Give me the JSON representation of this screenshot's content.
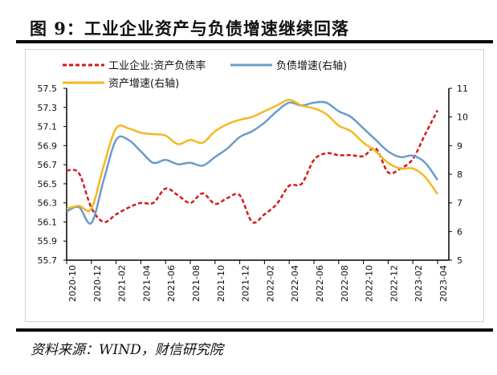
{
  "title": "图 9：工业企业资产与负债增速继续回落",
  "source": "资料来源：WIND，财信研究院",
  "chart_data": {
    "type": "line",
    "title": "工业企业资产与负债增速继续回落",
    "x": [
      "2020-10",
      "2020-11",
      "2020-12",
      "2021-01",
      "2021-02",
      "2021-03",
      "2021-04",
      "2021-05",
      "2021-06",
      "2021-07",
      "2021-08",
      "2021-09",
      "2021-10",
      "2021-11",
      "2021-12",
      "2022-01",
      "2022-02",
      "2022-03",
      "2022-04",
      "2022-05",
      "2022-06",
      "2022-07",
      "2022-08",
      "2022-09",
      "2022-10",
      "2022-11",
      "2022-12",
      "2023-01",
      "2023-02",
      "2023-03",
      "2023-04"
    ],
    "x_tick_labels": [
      "2020-10",
      "2020-12",
      "2021-02",
      "2021-04",
      "2021-06",
      "2021-08",
      "2021-10",
      "2021-12",
      "2022-02",
      "2022-04",
      "2022-06",
      "2022-08",
      "2022-10",
      "2022-12",
      "2023-02",
      "2023-04"
    ],
    "series": [
      {
        "name": "工业企业:资产负债率",
        "axis": "left",
        "color": "#d7191c",
        "style": "dashed",
        "values": [
          56.64,
          56.61,
          56.25,
          56.1,
          56.18,
          56.25,
          56.3,
          56.3,
          56.45,
          56.38,
          56.3,
          56.4,
          56.29,
          56.35,
          56.38,
          56.1,
          56.18,
          56.29,
          56.48,
          56.5,
          56.75,
          56.82,
          56.8,
          56.8,
          56.79,
          56.87,
          56.62,
          56.66,
          56.76,
          57.02,
          57.27
        ]
      },
      {
        "name": "负债增速(右轴)",
        "axis": "right",
        "color": "#6a9ccb",
        "style": "solid",
        "values": [
          6.7,
          6.85,
          6.3,
          7.8,
          9.2,
          9.2,
          8.8,
          8.4,
          8.5,
          8.35,
          8.4,
          8.3,
          8.6,
          8.9,
          9.3,
          9.5,
          9.8,
          10.2,
          10.5,
          10.4,
          10.5,
          10.5,
          10.2,
          10.0,
          9.6,
          9.2,
          8.8,
          8.6,
          8.65,
          8.4,
          7.8
        ]
      },
      {
        "name": "资产增速(右轴)",
        "axis": "right",
        "color": "#f5b820",
        "style": "solid",
        "values": [
          6.8,
          6.9,
          6.8,
          8.3,
          9.6,
          9.6,
          9.45,
          9.4,
          9.35,
          9.05,
          9.2,
          9.1,
          9.5,
          9.75,
          9.9,
          10.0,
          10.2,
          10.4,
          10.6,
          10.4,
          10.3,
          10.1,
          9.7,
          9.5,
          9.1,
          8.8,
          8.4,
          8.2,
          8.2,
          7.9,
          7.3
        ]
      }
    ],
    "y_left": {
      "ylim": [
        55.7,
        57.5
      ],
      "ticks": [
        "57.5",
        "57.3",
        "57.1",
        "56.9",
        "56.7",
        "56.5",
        "56.3",
        "56.1",
        "55.9",
        "55.7"
      ]
    },
    "y_right": {
      "ylim": [
        5,
        11
      ],
      "ticks": [
        "11",
        "10",
        "9",
        "8",
        "7",
        "6",
        "5"
      ]
    },
    "legend": "top",
    "grid": false
  }
}
